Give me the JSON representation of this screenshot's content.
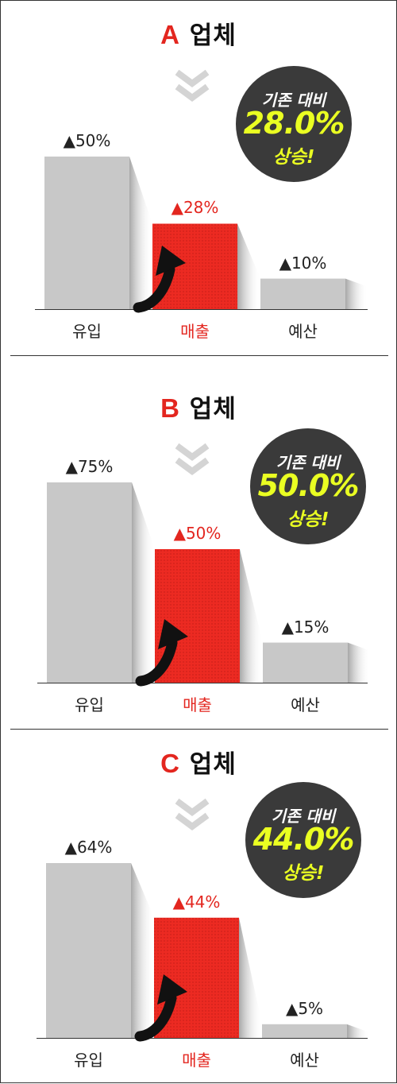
{
  "chart_data": [
    {
      "type": "bar",
      "title": "A 업체",
      "title_letter": "A",
      "title_suffix": "업체",
      "categories": [
        "유입",
        "매출",
        "예산"
      ],
      "values": [
        50,
        28,
        10
      ],
      "value_labels": [
        "▲50%",
        "▲28%",
        "▲10%"
      ],
      "highlight_index": 1,
      "ylim": [
        0,
        60
      ],
      "badge": {
        "line1": "기존 대비",
        "line2": "28.0%",
        "line3": "상승!"
      }
    },
    {
      "type": "bar",
      "title": "B 업체",
      "title_letter": "B",
      "title_suffix": "업체",
      "categories": [
        "유입",
        "매출",
        "예산"
      ],
      "values": [
        75,
        50,
        15
      ],
      "value_labels": [
        "▲75%",
        "▲50%",
        "▲15%"
      ],
      "highlight_index": 1,
      "ylim": [
        0,
        80
      ],
      "badge": {
        "line1": "기존 대비",
        "line2": "50.0%",
        "line3": "상승!"
      }
    },
    {
      "type": "bar",
      "title": "C 업체",
      "title_letter": "C",
      "title_suffix": "업체",
      "categories": [
        "유입",
        "매출",
        "예산"
      ],
      "values": [
        64,
        44,
        5
      ],
      "value_labels": [
        "▲64%",
        "▲44%",
        "▲5%"
      ],
      "highlight_index": 1,
      "ylim": [
        0,
        70
      ],
      "badge": {
        "line1": "기존 대비",
        "line2": "44.0%",
        "line3": "상승!"
      }
    }
  ],
  "colors": {
    "bar": "#c8c8c8",
    "highlight_bar": "#ec2a22",
    "accent_text": "#e3261f",
    "badge_bg": "#3a3a3a",
    "badge_highlight": "#eaff22",
    "chevron": "#d4d4d4"
  },
  "icons": [
    "chevron-down-icon",
    "up-arrow-icon"
  ]
}
